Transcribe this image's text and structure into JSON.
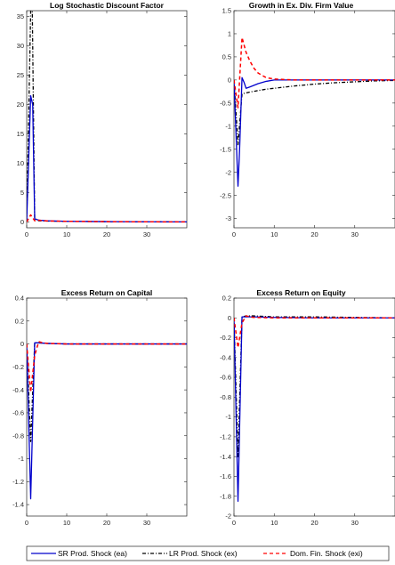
{
  "colors": {
    "sr": "#0000CC",
    "lr": "#000000",
    "dom": "#FF0000"
  },
  "legend": {
    "items": [
      {
        "label": "SR Prod. Shock (ea)",
        "color": "#0000CC",
        "dash": "solid"
      },
      {
        "label": "LR Prod. Shock (ex)",
        "color": "#000000",
        "dash": "dashdot"
      },
      {
        "label": "Dom. Fin. Shock (exi)",
        "color": "#FF0000",
        "dash": "dashed"
      }
    ]
  },
  "chart_data": [
    {
      "type": "line",
      "title": "Log Stochastic Discount Factor",
      "xlim": [
        0,
        40
      ],
      "ylim": [
        -1,
        36
      ],
      "xticks": [
        0,
        10,
        20,
        30
      ],
      "yticks": [
        0,
        5,
        10,
        15,
        20,
        25,
        30,
        35
      ],
      "series": [
        {
          "key": "lr",
          "x": [
            0,
            1,
            1.4,
            2,
            3,
            5,
            10,
            20,
            30,
            40
          ],
          "y": [
            0,
            36,
            36,
            0.6,
            0.2,
            0.15,
            0.1,
            0.05,
            0.02,
            0
          ]
        },
        {
          "key": "sr",
          "x": [
            0,
            1,
            1.5,
            2,
            3,
            5,
            10,
            20,
            30,
            40
          ],
          "y": [
            0,
            21.5,
            20,
            0.5,
            0.3,
            0.2,
            0.1,
            0.05,
            0.02,
            0
          ]
        },
        {
          "key": "dom",
          "x": [
            0,
            1,
            2,
            3,
            4,
            6,
            10,
            20,
            30,
            40
          ],
          "y": [
            0,
            1.2,
            0.2,
            0.3,
            0.2,
            0.15,
            0.1,
            0.05,
            0.02,
            0
          ]
        }
      ]
    },
    {
      "type": "line",
      "title": "Growth in Ex. Div. Firm Value",
      "xlim": [
        0,
        40
      ],
      "ylim": [
        -3.2,
        1.5
      ],
      "xticks": [
        0,
        10,
        20,
        30
      ],
      "yticks": [
        -3,
        -2.5,
        -2,
        -1.5,
        -1,
        -0.5,
        0,
        0.5,
        1,
        1.5
      ],
      "series": [
        {
          "key": "lr",
          "x": [
            0,
            1,
            2,
            3,
            4,
            6,
            8,
            10,
            15,
            20,
            25,
            30,
            35,
            40
          ],
          "y": [
            0,
            -1.4,
            -0.3,
            -0.28,
            -0.26,
            -0.23,
            -0.2,
            -0.18,
            -0.13,
            -0.09,
            -0.06,
            -0.04,
            -0.02,
            -0.01
          ]
        },
        {
          "key": "sr",
          "x": [
            0,
            1,
            1.4,
            2,
            2.5,
            3,
            4,
            6,
            8,
            10,
            15,
            20,
            30,
            40
          ],
          "y": [
            0,
            -2.3,
            -1.5,
            0.05,
            -0.05,
            -0.18,
            -0.15,
            -0.08,
            -0.03,
            0,
            0,
            0,
            0,
            0
          ]
        },
        {
          "key": "dom",
          "x": [
            0,
            1,
            2,
            3,
            4,
            5,
            6,
            7,
            8,
            10,
            15,
            20,
            30,
            40
          ],
          "y": [
            0,
            -0.6,
            0.92,
            0.6,
            0.4,
            0.25,
            0.15,
            0.1,
            0.05,
            0.02,
            0,
            0,
            0,
            0
          ]
        }
      ]
    },
    {
      "type": "line",
      "title": "Excess Return on Capital",
      "xlim": [
        0,
        40
      ],
      "ylim": [
        -1.5,
        0.4
      ],
      "xticks": [
        0,
        10,
        20,
        30
      ],
      "yticks": [
        -1.4,
        -1.2,
        -1,
        -0.8,
        -0.6,
        -0.4,
        -0.2,
        0,
        0.2,
        0.4
      ],
      "series": [
        {
          "key": "lr",
          "x": [
            0,
            1,
            2,
            3,
            5,
            10,
            20,
            30,
            40
          ],
          "y": [
            0,
            -0.85,
            0.01,
            0.01,
            0.005,
            0,
            0,
            0,
            0
          ]
        },
        {
          "key": "sr",
          "x": [
            0,
            1,
            2,
            3,
            5,
            10,
            20,
            30,
            40
          ],
          "y": [
            0,
            -1.35,
            0.01,
            0.01,
            0.005,
            0,
            0,
            0,
            0
          ]
        },
        {
          "key": "dom",
          "x": [
            0,
            1,
            2,
            3,
            4,
            5,
            10,
            20,
            30,
            40
          ],
          "y": [
            0,
            -0.42,
            -0.1,
            0.02,
            0.01,
            0.005,
            0,
            0,
            0,
            0
          ]
        }
      ]
    },
    {
      "type": "line",
      "title": "Excess Return on Equity",
      "xlim": [
        0,
        40
      ],
      "ylim": [
        -2,
        0.2
      ],
      "xticks": [
        0,
        10,
        20,
        30
      ],
      "yticks": [
        -2,
        -1.8,
        -1.6,
        -1.4,
        -1.2,
        -1,
        -0.8,
        -0.6,
        -0.4,
        -0.2,
        0,
        0.2
      ],
      "series": [
        {
          "key": "lr",
          "x": [
            0,
            1,
            2,
            3,
            5,
            10,
            20,
            30,
            40
          ],
          "y": [
            0,
            -1.4,
            0.01,
            0.02,
            0.02,
            0.01,
            0.01,
            0.005,
            0
          ]
        },
        {
          "key": "sr",
          "x": [
            0,
            1,
            2,
            3,
            5,
            10,
            20,
            30,
            40
          ],
          "y": [
            0,
            -1.85,
            0.01,
            0.01,
            0.01,
            0.005,
            0,
            0,
            0
          ]
        },
        {
          "key": "dom",
          "x": [
            0,
            1,
            2,
            3,
            4,
            5,
            10,
            20,
            30,
            40
          ],
          "y": [
            0,
            -0.3,
            -0.05,
            0.02,
            0.01,
            0.005,
            0,
            0,
            0,
            0
          ]
        }
      ]
    }
  ]
}
